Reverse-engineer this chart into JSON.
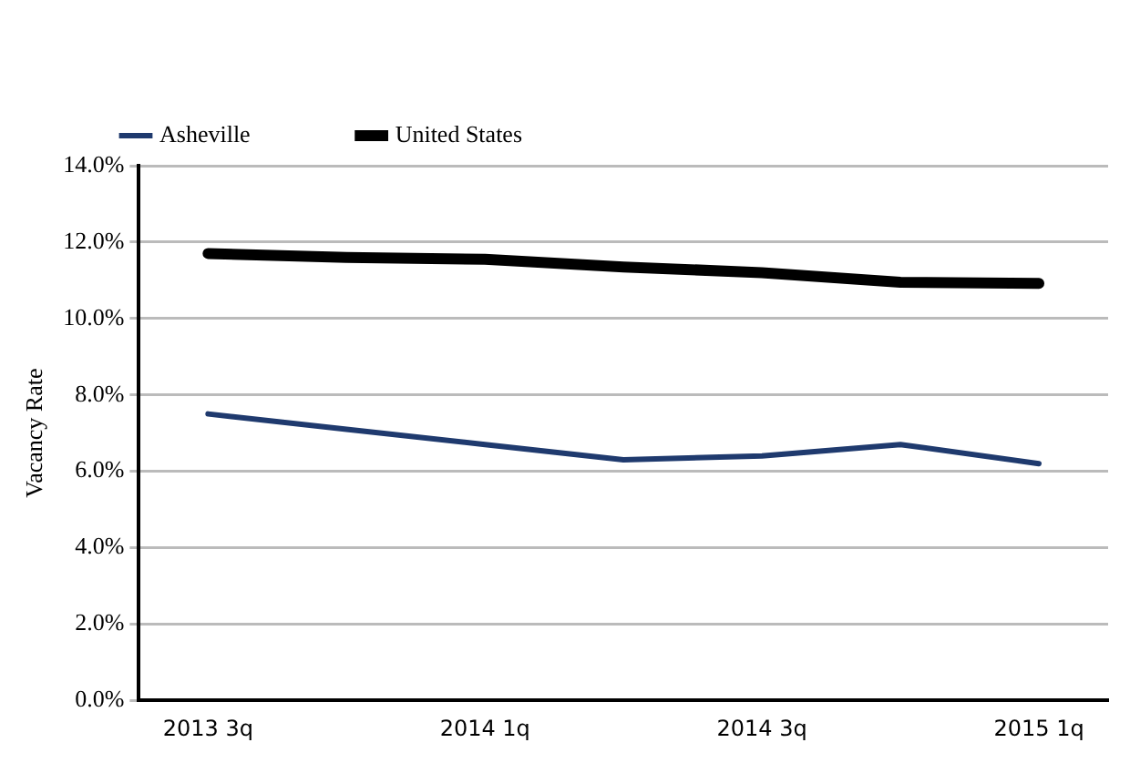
{
  "chart_data": {
    "type": "line",
    "ylabel": "Vacancy Rate",
    "categories": [
      "2013 3q",
      null,
      "2014 1q",
      null,
      "2014 3q",
      null,
      "2015 1q"
    ],
    "series": [
      {
        "name": "Asheville",
        "color": "#1f3a6e",
        "values": [
          7.5,
          7.1,
          6.7,
          6.3,
          6.4,
          6.7,
          6.2
        ]
      },
      {
        "name": "United States",
        "color": "#000000",
        "values": [
          11.7,
          11.6,
          11.55,
          11.35,
          11.2,
          10.95,
          10.92
        ]
      }
    ],
    "ylim": [
      0,
      14
    ],
    "yticks": [
      {
        "value": 0,
        "label": "0.0%"
      },
      {
        "value": 2,
        "label": "2.0%"
      },
      {
        "value": 4,
        "label": "4.0%"
      },
      {
        "value": 6,
        "label": "6.0%"
      },
      {
        "value": 8,
        "label": "8.0%"
      },
      {
        "value": 10,
        "label": "10.0%"
      },
      {
        "value": 12,
        "label": "12.0%"
      },
      {
        "value": 14,
        "label": "14.0%"
      }
    ],
    "grid": "y",
    "legend": "top",
    "marker": "none",
    "line_style": "solid"
  }
}
